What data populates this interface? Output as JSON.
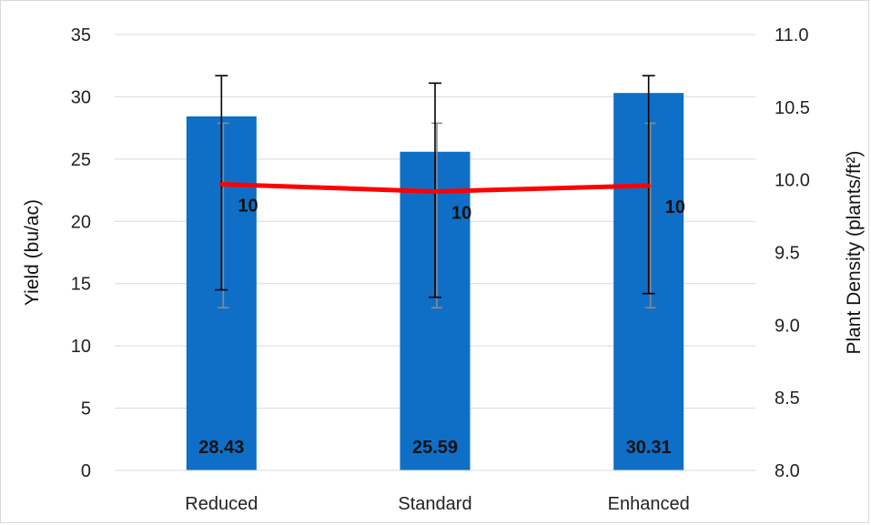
{
  "chart_data": {
    "type": "bar",
    "categories": [
      "Reduced",
      "Standard",
      "Enhanced"
    ],
    "ylabel": "Yield (bu/ac)",
    "y2label": "Plant Density (plants/ft²)",
    "ylim": [
      0,
      35
    ],
    "y_ticks": [
      "0",
      "5",
      "10",
      "15",
      "20",
      "25",
      "30",
      "35"
    ],
    "y2lim": [
      8.0,
      11.0
    ],
    "y2_ticks": [
      "8.0",
      "8.5",
      "9.0",
      "9.5",
      "10.0",
      "10.5",
      "11.0"
    ],
    "grid": true,
    "series": [
      {
        "type": "bar",
        "values": [
          28.43,
          25.59,
          30.31
        ],
        "labels": [
          "28.43",
          "25.59",
          "30.31"
        ],
        "error_low": [
          14.5,
          13.9,
          14.2
        ],
        "error_high": [
          31.7,
          31.1,
          31.7
        ],
        "color": "#0f6fc6",
        "axis": "left"
      },
      {
        "type": "line",
        "values": [
          9.97,
          9.92,
          9.96
        ],
        "labels": [
          "10",
          "10",
          "10"
        ],
        "error_low": [
          9.12,
          9.12,
          9.12
        ],
        "error_high": [
          10.39,
          10.39,
          10.39
        ],
        "color": "#ff0000",
        "axis": "right"
      }
    ]
  }
}
